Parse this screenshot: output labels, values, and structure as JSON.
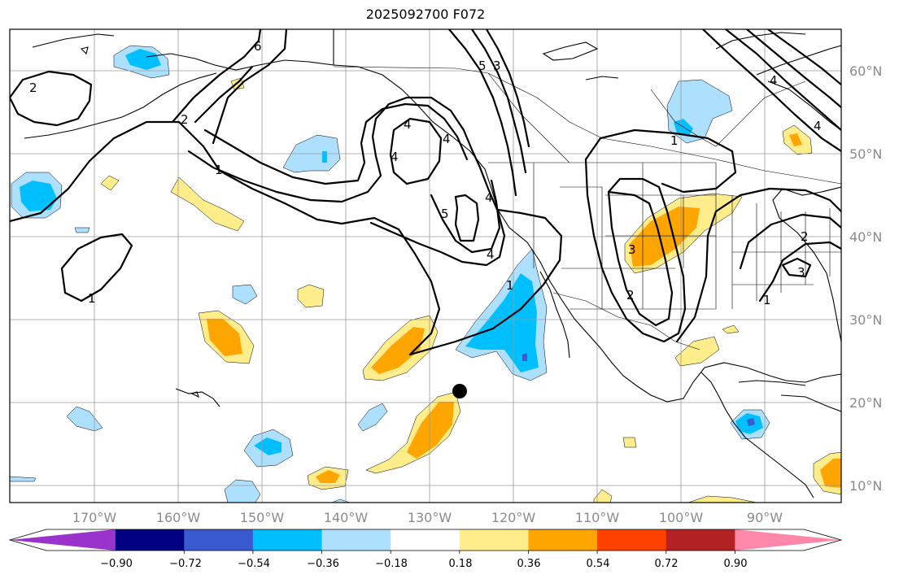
{
  "title": "2025092700 F072",
  "lat_labels": [
    "60°N",
    "50°N",
    "40°N",
    "30°N",
    "20°N",
    "10°N"
  ],
  "lon_labels": [
    "170°W",
    "160°W",
    "150°W",
    "140°W",
    "130°W",
    "120°W",
    "110°W",
    "100°W",
    "90°W"
  ],
  "colorbar": {
    "colors": [
      "#9933cc",
      "#000080",
      "#3a5bd0",
      "#00bfff",
      "#ade0ff",
      "#ffffff",
      "#ffec8b",
      "#ffa500",
      "#ff4000",
      "#b22222",
      "#ff88aa"
    ],
    "tick_labels": [
      "−0.90",
      "−0.72",
      "−0.54",
      "−0.36",
      "−0.18",
      "0.18",
      "0.36",
      "0.54",
      "0.72",
      "0.90"
    ]
  },
  "contour_labels": [
    "2",
    "2",
    "1",
    "1",
    "1",
    "6",
    "5",
    "3",
    "4",
    "4",
    "4",
    "5",
    "4",
    "4",
    "1",
    "3",
    "2",
    "2",
    "3",
    "1",
    "4",
    "4"
  ],
  "colors": {
    "light_yellow": "#ffec8b",
    "orange": "#ffa500",
    "light_blue": "#ade0ff",
    "blue": "#00bfff",
    "mid_blue": "#3a5bd0",
    "grid": "#9a9a9a",
    "axis_label": "#8a8a8a"
  }
}
